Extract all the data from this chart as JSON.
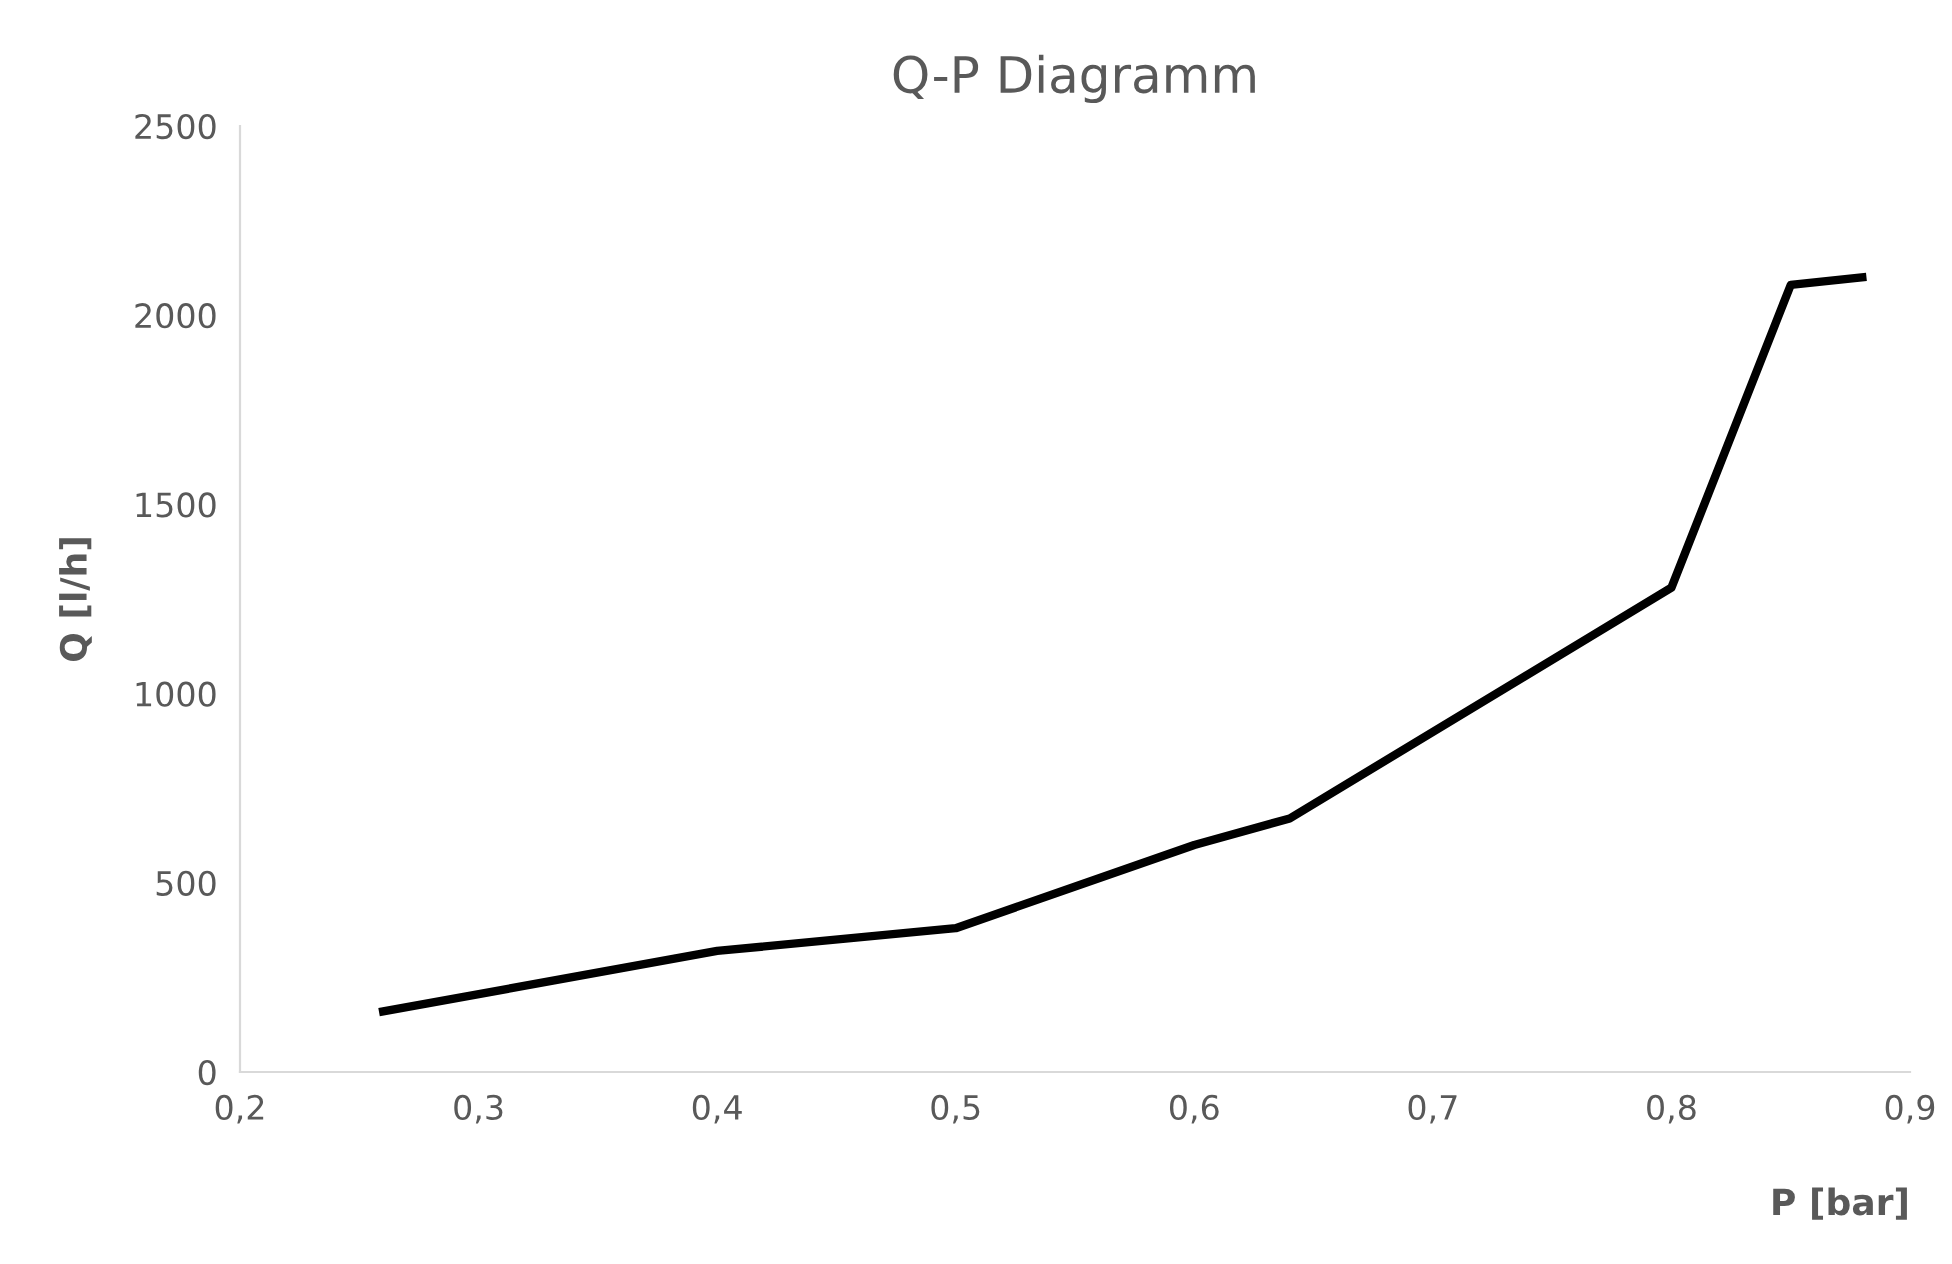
{
  "chart_data": {
    "type": "line",
    "title": "Q-P Diagramm",
    "xlabel": "P [bar]",
    "ylabel": "Q [l/h]",
    "x": [
      0.26,
      0.4,
      0.5,
      0.6,
      0.64,
      0.8,
      0.85,
      0.88
    ],
    "series": [
      {
        "color": "#000000",
        "values": [
          160,
          320,
          380,
          600,
          670,
          1280,
          2080,
          2100
        ]
      }
    ],
    "xlim": [
      0.2,
      0.9
    ],
    "xticks": [
      {
        "value": 0.2,
        "label": "0,2"
      },
      {
        "value": 0.3,
        "label": "0,3"
      },
      {
        "value": 0.4,
        "label": "0,4"
      },
      {
        "value": 0.5,
        "label": "0,5"
      },
      {
        "value": 0.6,
        "label": "0,6"
      },
      {
        "value": 0.7,
        "label": "0,7"
      },
      {
        "value": 0.8,
        "label": "0,8"
      },
      {
        "value": 0.9,
        "label": "0,9"
      }
    ],
    "ylim": [
      0,
      2500
    ],
    "yticks": [
      0,
      500,
      1000,
      1500,
      2000,
      2500
    ],
    "grid": false,
    "legend": false,
    "marker": "none",
    "line_style": "solid"
  }
}
